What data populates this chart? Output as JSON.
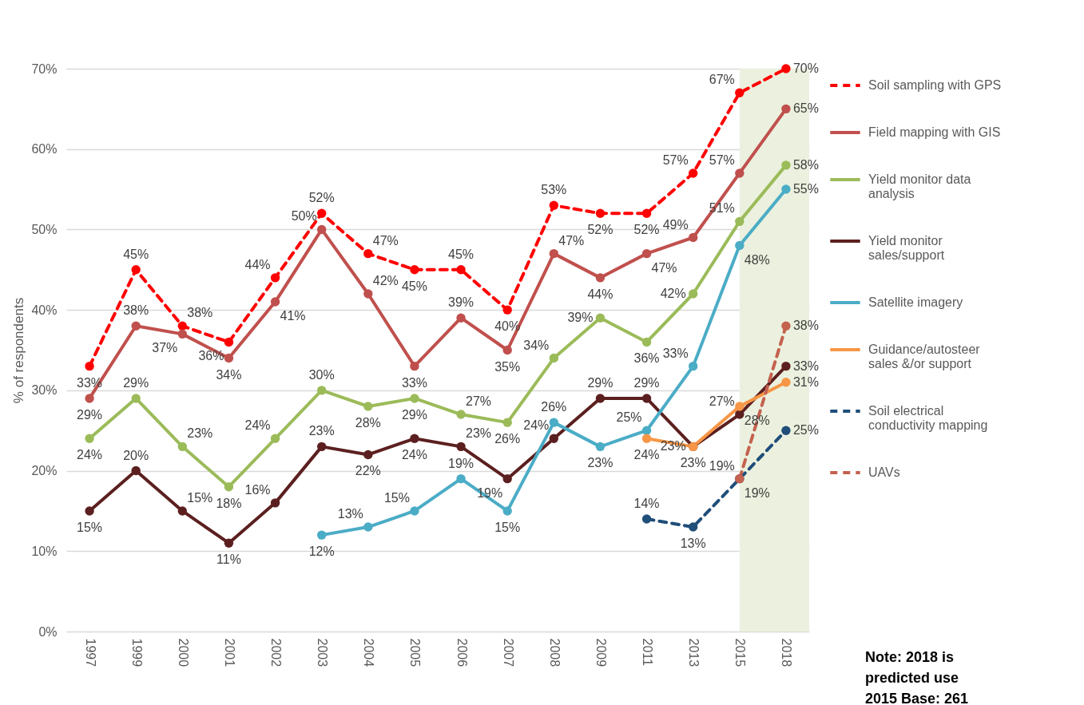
{
  "chart_data": {
    "type": "line",
    "ylabel": "% of respondents",
    "categories": [
      "1997",
      "1999",
      "2000",
      "2001",
      "2002",
      "2003",
      "2004",
      "2005",
      "2006",
      "2007",
      "2008",
      "2009",
      "2011",
      "2013",
      "2015",
      "2018"
    ],
    "ylim": [
      0,
      70
    ],
    "yticks": [
      {
        "value": 0,
        "label": "0%"
      },
      {
        "value": 10,
        "label": "10%"
      },
      {
        "value": 20,
        "label": "20%"
      },
      {
        "value": 30,
        "label": "30%"
      },
      {
        "value": 40,
        "label": "40%"
      },
      {
        "value": 50,
        "label": "50%"
      },
      {
        "value": 60,
        "label": "60%"
      },
      {
        "value": 70,
        "label": "70%"
      }
    ],
    "grid": "y",
    "legend": "right",
    "marker": "circle",
    "series": [
      {
        "name": "Soil sampling with GPS",
        "color": "#ff0000",
        "line_style": "dashed",
        "values": [
          33,
          45,
          38,
          36,
          44,
          52,
          47,
          45,
          45,
          40,
          53,
          52,
          52,
          57,
          67,
          70
        ],
        "value_labels": [
          "33%",
          "45%",
          "38%",
          "36%",
          "44%",
          "52%",
          "47%",
          "45%",
          "45%",
          "40%",
          "53%",
          "52%",
          "52%",
          "57%",
          "67%",
          "70%"
        ]
      },
      {
        "name": "Field mapping with GIS",
        "color": "#c0504d",
        "line_style": "solid",
        "values": [
          29,
          38,
          37,
          34,
          41,
          50,
          42,
          33,
          39,
          35,
          47,
          44,
          47,
          49,
          57,
          65
        ],
        "value_labels": [
          "29%",
          "38%",
          "37%",
          "34%",
          "41%",
          "50%",
          "42%",
          "33%",
          "39%",
          "35%",
          "47%",
          "44%",
          "47%",
          "49%",
          "57%",
          "65%"
        ]
      },
      {
        "name": "Yield monitor data analysis",
        "color": "#9bbb59",
        "line_style": "solid",
        "values": [
          24,
          29,
          23,
          18,
          24,
          30,
          28,
          29,
          27,
          26,
          34,
          39,
          36,
          42,
          51,
          58
        ],
        "value_labels": [
          "24%",
          "29%",
          "23%",
          "18%",
          "24%",
          "30%",
          "28%",
          "29%",
          "27%",
          "26%",
          "34%",
          "39%",
          "36%",
          "42%",
          "51%",
          "58%"
        ]
      },
      {
        "name": "Yield monitor sales/support",
        "color": "#5c1f1f",
        "line_style": "solid",
        "values": [
          15,
          20,
          15,
          11,
          16,
          23,
          22,
          24,
          23,
          19,
          24,
          29,
          29,
          23,
          27,
          33
        ],
        "value_labels": [
          "15%",
          "20%",
          "15%",
          "11%",
          "16%",
          "23%",
          "22%",
          "24%",
          "23%",
          "19%",
          "24%",
          "29%",
          "29%",
          "23%",
          "27%",
          "33%"
        ]
      },
      {
        "name": "Satellite imagery",
        "color": "#4bacc6",
        "line_style": "solid",
        "values": [
          null,
          null,
          null,
          null,
          null,
          12,
          13,
          15,
          19,
          15,
          26,
          23,
          25,
          33,
          48,
          55
        ],
        "value_labels": [
          null,
          null,
          null,
          null,
          null,
          "12%",
          "13%",
          "15%",
          "19%",
          "15%",
          "26%",
          "23%",
          "25%",
          "33%",
          "48%",
          "55%"
        ]
      },
      {
        "name": "Guidance/autosteer sales &/or support",
        "color": "#f79646",
        "line_style": "solid",
        "values": [
          null,
          null,
          null,
          null,
          null,
          null,
          null,
          null,
          null,
          null,
          null,
          null,
          24,
          23,
          28,
          31
        ],
        "value_labels": [
          null,
          null,
          null,
          null,
          null,
          null,
          null,
          null,
          null,
          null,
          null,
          null,
          "24%",
          "23%",
          "28%",
          "31%"
        ]
      },
      {
        "name": "Soil electrical conductivity mapping",
        "color": "#1f4e79",
        "line_style": "dashed",
        "values": [
          null,
          null,
          null,
          null,
          null,
          null,
          null,
          null,
          null,
          null,
          null,
          null,
          14,
          13,
          19,
          25
        ],
        "value_labels": [
          null,
          null,
          null,
          null,
          null,
          null,
          null,
          null,
          null,
          null,
          null,
          null,
          "14%",
          "13%",
          "19%",
          "25%"
        ]
      },
      {
        "name": "UAVs",
        "color": "#c4614f",
        "line_style": "dashed",
        "values": [
          null,
          null,
          null,
          null,
          null,
          null,
          null,
          null,
          null,
          null,
          null,
          null,
          null,
          null,
          19,
          38
        ],
        "value_labels": [
          null,
          null,
          null,
          null,
          null,
          null,
          null,
          null,
          null,
          null,
          null,
          null,
          null,
          null,
          "19%",
          "38%"
        ]
      }
    ],
    "bands": [
      {
        "axis": "x",
        "from": "2015",
        "to": "2018",
        "color": "#ebf1de"
      }
    ],
    "annotations": [
      "Note: 2018 is predicted use",
      "2015 Base: 261"
    ]
  }
}
